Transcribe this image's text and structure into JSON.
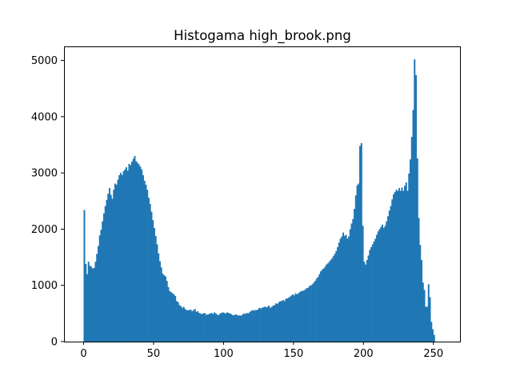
{
  "chart_data": {
    "type": "bar",
    "title": "Histogama high_brook.png",
    "xlabel": "",
    "ylabel": "",
    "xlim": [
      -14,
      269
    ],
    "ylim": [
      0,
      5250
    ],
    "x_ticks": [
      "0",
      "50",
      "100",
      "150",
      "200",
      "250"
    ],
    "y_ticks": [
      "0",
      "1000",
      "2000",
      "3000",
      "4000",
      "5000"
    ],
    "grid": false,
    "legend": "none",
    "bar_color": "#1f77b4",
    "bin_start": 0,
    "bin_width": 1,
    "values": [
      2340,
      1380,
      1200,
      1420,
      1350,
      1330,
      1300,
      1310,
      1420,
      1560,
      1700,
      1890,
      1990,
      2140,
      2280,
      2410,
      2520,
      2630,
      2730,
      2610,
      2540,
      2700,
      2810,
      2790,
      2880,
      2960,
      3000,
      2960,
      3030,
      3060,
      3100,
      3040,
      3160,
      3140,
      3200,
      3250,
      3300,
      3210,
      3180,
      3150,
      3110,
      3060,
      2960,
      2860,
      2790,
      2700,
      2560,
      2450,
      2310,
      2160,
      2020,
      1880,
      1730,
      1570,
      1430,
      1320,
      1210,
      1180,
      1160,
      1080,
      970,
      900,
      880,
      860,
      840,
      810,
      720,
      700,
      650,
      630,
      600,
      620,
      580,
      560,
      560,
      560,
      570,
      540,
      560,
      580,
      530,
      540,
      510,
      500,
      490,
      500,
      510,
      480,
      480,
      490,
      500,
      510,
      490,
      520,
      500,
      480,
      470,
      500,
      510,
      520,
      510,
      500,
      520,
      510,
      500,
      490,
      470,
      470,
      480,
      480,
      460,
      470,
      460,
      480,
      500,
      490,
      510,
      500,
      520,
      540,
      560,
      550,
      560,
      560,
      570,
      600,
      590,
      600,
      610,
      620,
      610,
      620,
      640,
      600,
      620,
      640,
      650,
      680,
      670,
      700,
      720,
      720,
      740,
      720,
      760,
      770,
      780,
      800,
      820,
      840,
      820,
      860,
      840,
      860,
      880,
      900,
      900,
      910,
      930,
      950,
      960,
      990,
      1000,
      1020,
      1050,
      1080,
      1120,
      1150,
      1200,
      1250,
      1280,
      1300,
      1330,
      1370,
      1390,
      1420,
      1450,
      1480,
      1520,
      1560,
      1610,
      1680,
      1760,
      1830,
      1870,
      1940,
      1880,
      1900,
      1830,
      1870,
      2000,
      2100,
      2180,
      2360,
      2600,
      2780,
      2810,
      3480,
      3530,
      2060,
      1420,
      1370,
      1450,
      1530,
      1630,
      1680,
      1730,
      1780,
      1830,
      1900,
      1960,
      2000,
      2040,
      2080,
      2020,
      2060,
      2140,
      2230,
      2330,
      2410,
      2530,
      2620,
      2660,
      2700,
      2680,
      2730,
      2680,
      2740,
      2680,
      2770,
      2830,
      2680,
      2990,
      3240,
      3640,
      4120,
      5020,
      4740,
      3260,
      2200,
      1720,
      1450,
      1050,
      920,
      620,
      620,
      1020,
      790,
      350,
      220,
      120
    ]
  }
}
